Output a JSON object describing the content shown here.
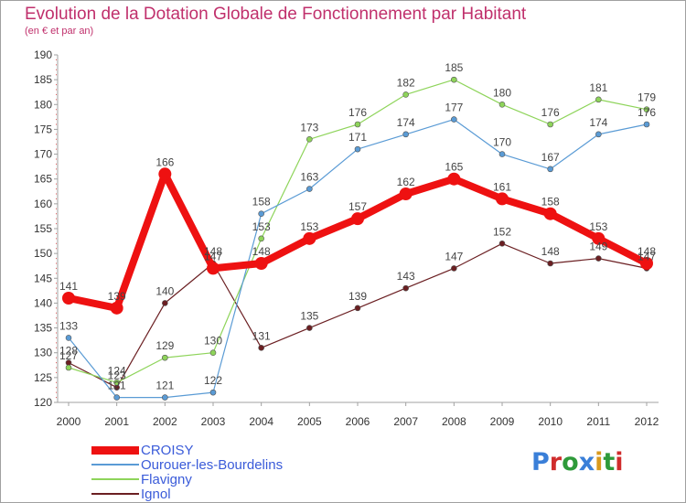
{
  "header": {
    "title": "Evolution de la Dotation Globale de Fonctionnement par Habitant",
    "subtitle": "(en € et par an)"
  },
  "chart_data": {
    "type": "line",
    "title": "Evolution de la Dotation Globale de Fonctionnement par Habitant",
    "subtitle": "(en € et par an)",
    "x": [
      "2000",
      "2001",
      "2002",
      "2003",
      "2004",
      "2005",
      "2006",
      "2007",
      "2008",
      "2009",
      "2010",
      "2011",
      "2012"
    ],
    "ylim": [
      120,
      190
    ],
    "yticks": [
      120,
      125,
      130,
      135,
      140,
      145,
      150,
      155,
      160,
      165,
      170,
      175,
      180,
      185,
      190
    ],
    "grid": false,
    "legend": "bottom-left",
    "series": [
      {
        "name": "CROISY",
        "color": "#ee1111",
        "values": [
          141,
          139,
          166,
          147,
          148,
          153,
          157,
          162,
          165,
          161,
          158,
          153,
          148
        ]
      },
      {
        "name": "Ourouer-les-Bourdelins",
        "color": "#5a9bd5",
        "values": [
          133,
          121,
          121,
          122,
          158,
          163,
          171,
          174,
          177,
          170,
          167,
          174,
          176
        ]
      },
      {
        "name": "Flavigny",
        "color": "#8ed45a",
        "values": [
          127,
          124,
          129,
          130,
          153,
          173,
          176,
          182,
          185,
          180,
          176,
          181,
          179
        ]
      },
      {
        "name": "Ignol",
        "color": "#6b1f22",
        "values": [
          128,
          123,
          140,
          148,
          131,
          135,
          139,
          143,
          147,
          152,
          148,
          149,
          147
        ]
      }
    ]
  },
  "logo": {
    "text": "Proxiti",
    "colors": [
      "#3a7fd8",
      "#d02c2c",
      "#2e9a3a",
      "#3a7fd8",
      "#d99a1e",
      "#2e9a3a",
      "#d02c2c"
    ]
  }
}
